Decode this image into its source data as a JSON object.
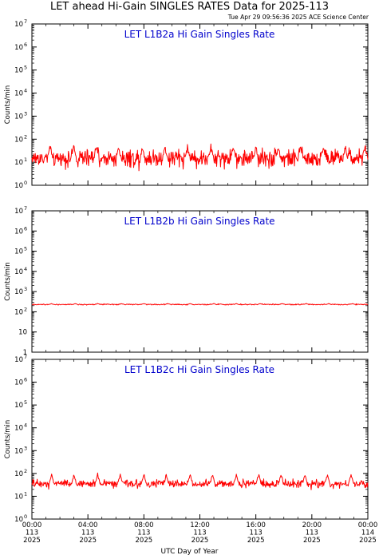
{
  "page": {
    "title": "LET ahead Hi-Gain SINGLES RATES Data for 2025-113",
    "timestamp": "Tue Apr 29 09:56:36 2025 ACE Science Center",
    "xlabel": "UTC Day of Year"
  },
  "colors": {
    "series": "#ff0000",
    "panel_title": "#0000cc",
    "axes": "#000000"
  },
  "chart_data": [
    {
      "type": "line",
      "title": "LET L1B2a Hi Gain Singles Rate",
      "ylabel": "Counts/min",
      "yscale": "log",
      "ylim": [
        1,
        10000000
      ],
      "yticks": [
        {
          "base": "10",
          "exp": "0"
        },
        {
          "base": "10",
          "exp": "1"
        },
        {
          "base": "10",
          "exp": "2"
        },
        {
          "base": "10",
          "exp": "3"
        },
        {
          "base": "10",
          "exp": "4"
        },
        {
          "base": "10",
          "exp": "5"
        },
        {
          "base": "10",
          "exp": "6"
        },
        {
          "base": "10",
          "exp": "7"
        }
      ],
      "xlim_hours": [
        0,
        24
      ],
      "series": [
        {
          "baseline": 15,
          "noise_decades": 0.28,
          "spikes_hours": [
            1.3,
            3.0,
            4.6,
            6.2,
            7.9,
            9.5,
            11.1,
            12.8,
            14.4,
            16.0,
            17.6,
            19.2,
            20.8,
            22.4,
            23.8
          ],
          "spike_peak": 45
        }
      ]
    },
    {
      "type": "line",
      "title": "LET L1B2b Hi Gain Singles Rate",
      "ylabel": "Counts/min",
      "yscale": "log",
      "ylim": [
        1,
        10000000
      ],
      "yticks": [
        {
          "base": "1",
          "exp": ""
        },
        {
          "base": "10",
          "exp": ""
        },
        {
          "base": "10",
          "exp": "2"
        },
        {
          "base": "10",
          "exp": "3"
        },
        {
          "base": "10",
          "exp": "4"
        },
        {
          "base": "10",
          "exp": "5"
        },
        {
          "base": "10",
          "exp": "6"
        },
        {
          "base": "10",
          "exp": "7"
        }
      ],
      "xlim_hours": [
        0,
        24
      ],
      "series": [
        {
          "baseline": 230,
          "noise_decades": 0.02,
          "spikes_hours": [
            1.4,
            3.1,
            4.7,
            6.4,
            8.0,
            9.7,
            11.3,
            13.0,
            14.6,
            16.3,
            17.9,
            19.6,
            21.2,
            22.9
          ],
          "spike_peak": 255
        }
      ]
    },
    {
      "type": "line",
      "title": "LET L1B2c Hi Gain Singles Rate",
      "ylabel": "Counts/min",
      "yscale": "log",
      "ylim": [
        1,
        10000000
      ],
      "yticks": [
        {
          "base": "10",
          "exp": "0"
        },
        {
          "base": "10",
          "exp": "1"
        },
        {
          "base": "10",
          "exp": "2"
        },
        {
          "base": "10",
          "exp": "3"
        },
        {
          "base": "10",
          "exp": "4"
        },
        {
          "base": "10",
          "exp": "5"
        },
        {
          "base": "10",
          "exp": "6"
        },
        {
          "base": "10",
          "exp": "7"
        }
      ],
      "xlim_hours": [
        0,
        24
      ],
      "series": [
        {
          "baseline": 35,
          "noise_decades": 0.12,
          "spikes_hours": [
            1.4,
            3.0,
            4.7,
            6.3,
            8.0,
            9.6,
            11.3,
            12.9,
            14.6,
            16.2,
            17.8,
            19.5,
            21.1,
            22.8
          ],
          "spike_peak": 90
        }
      ]
    }
  ],
  "xaxis": {
    "ticks": [
      {
        "hours": 0,
        "time": "00:00",
        "doy": "113",
        "year": "2025"
      },
      {
        "hours": 4,
        "time": "04:00",
        "doy": "113",
        "year": "2025"
      },
      {
        "hours": 8,
        "time": "08:00",
        "doy": "113",
        "year": "2025"
      },
      {
        "hours": 12,
        "time": "12:00",
        "doy": "113",
        "year": "2025"
      },
      {
        "hours": 16,
        "time": "16:00",
        "doy": "113",
        "year": "2025"
      },
      {
        "hours": 20,
        "time": "20:00",
        "doy": "113",
        "year": "2025"
      },
      {
        "hours": 24,
        "time": "00:00",
        "doy": "114",
        "year": "2025"
      }
    ]
  }
}
